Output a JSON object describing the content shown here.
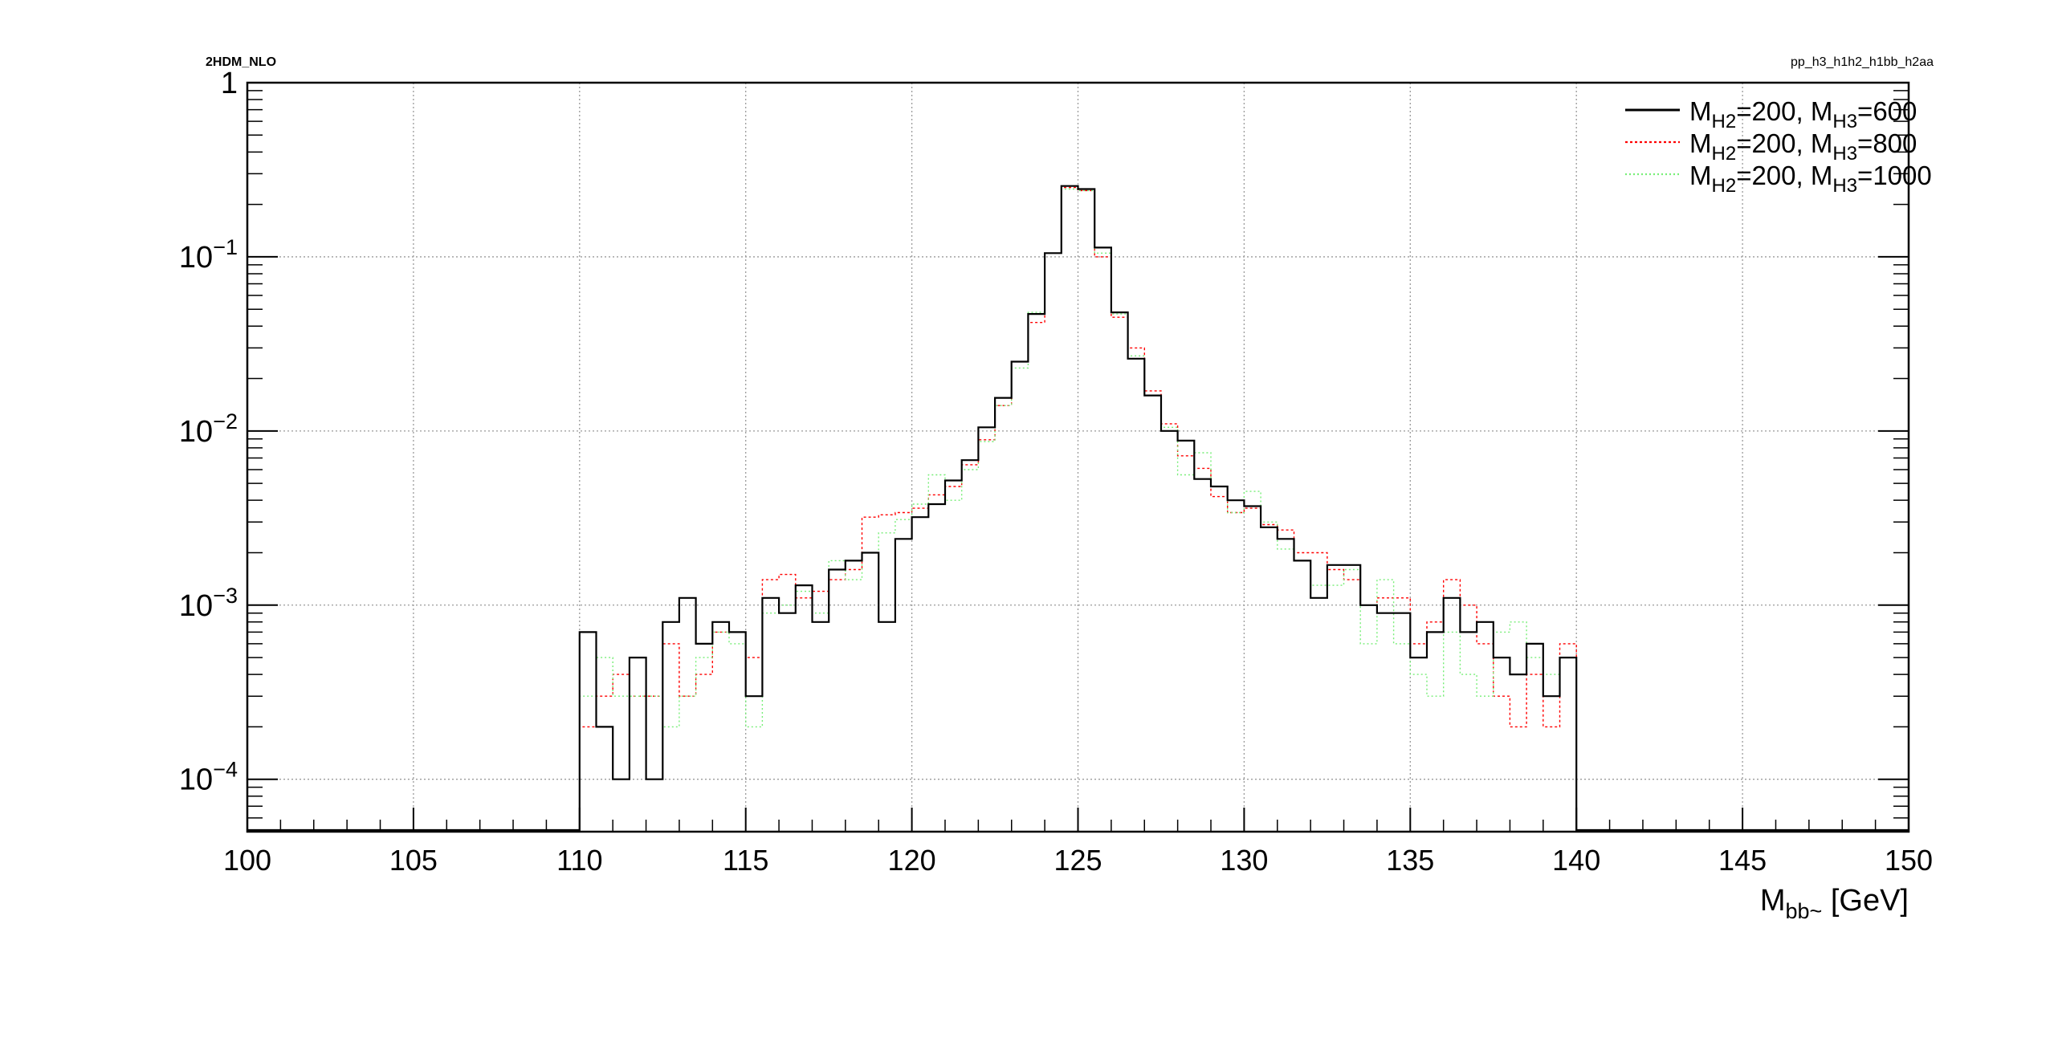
{
  "header": {
    "left_label": "2HDM_NLO",
    "right_label": "pp_h3_h1h2_h1bb_h2aa"
  },
  "chart_data": {
    "type": "histogram",
    "title": "",
    "xlabel_main": "M",
    "xlabel_sub": "bb~",
    "xlabel_unit": " [GeV]",
    "ylabel": "",
    "xlim": [
      100,
      150
    ],
    "ylim": [
      5e-05,
      1
    ],
    "yscale": "log",
    "grid": true,
    "legend_position": "top-right",
    "x_ticks": [
      100,
      105,
      110,
      115,
      120,
      125,
      130,
      135,
      140,
      145,
      150
    ],
    "y_ticks": [
      {
        "value": 1,
        "label": "1",
        "exp": ""
      },
      {
        "value": 0.1,
        "label": "10",
        "exp": "−1"
      },
      {
        "value": 0.01,
        "label": "10",
        "exp": "−2"
      },
      {
        "value": 0.001,
        "label": "10",
        "exp": "−3"
      },
      {
        "value": 0.0001,
        "label": "10",
        "exp": "−4"
      }
    ],
    "bin_edges_start": 110,
    "bin_width": 0.5,
    "series": [
      {
        "legend": {
          "t1": "M",
          "s1": "H2",
          "t2": "=200, M",
          "s2": "H3",
          "t3": "=600"
        },
        "color": "#000000",
        "dash": "",
        "width": 2.2,
        "values": [
          0.0007,
          0.0002,
          0.0001,
          0.0005,
          0.0001,
          0.0008,
          0.0011,
          0.0006,
          0.0008,
          0.0007,
          0.0003,
          0.0011,
          0.0009,
          0.0013,
          0.0008,
          0.0016,
          0.0018,
          0.002,
          0.0008,
          0.0024,
          0.0032,
          0.0038,
          0.0052,
          0.0068,
          0.0105,
          0.0155,
          0.025,
          0.047,
          0.105,
          0.255,
          0.245,
          0.113,
          0.048,
          0.026,
          0.016,
          0.01,
          0.0088,
          0.0053,
          0.0048,
          0.004,
          0.0037,
          0.0028,
          0.0024,
          0.0018,
          0.0011,
          0.0017,
          0.0017,
          0.001,
          0.0009,
          0.0009,
          0.0005,
          0.0007,
          0.0011,
          0.0007,
          0.0008,
          0.0005,
          0.0004,
          0.0006,
          0.0003,
          0.0005
        ]
      },
      {
        "legend": {
          "t1": "M",
          "s1": "H2",
          "t2": "=200, M",
          "s2": "H3",
          "t3": "=800"
        },
        "color": "#ff0000",
        "dash": "3,3",
        "width": 1.4,
        "values": [
          0.0002,
          0.0003,
          0.0004,
          0.0003,
          0.0003,
          0.0006,
          0.0003,
          0.0004,
          0.0007,
          0.0007,
          0.0005,
          0.0014,
          0.0015,
          0.0011,
          0.0012,
          0.0014,
          0.0016,
          0.0032,
          0.0033,
          0.0034,
          0.0036,
          0.0043,
          0.0048,
          0.0064,
          0.0089,
          0.014,
          0.025,
          0.042,
          0.105,
          0.25,
          0.24,
          0.1,
          0.045,
          0.03,
          0.017,
          0.011,
          0.0072,
          0.0061,
          0.0042,
          0.0034,
          0.0036,
          0.0029,
          0.0027,
          0.002,
          0.002,
          0.0016,
          0.0014,
          0.001,
          0.0011,
          0.0011,
          0.0006,
          0.0008,
          0.0014,
          0.001,
          0.0006,
          0.0003,
          0.0002,
          0.0004,
          0.0002,
          0.0006
        ]
      },
      {
        "legend": {
          "t1": "M",
          "s1": "H2",
          "t2": "=200, M",
          "s2": "H3",
          "t3": "=1000"
        },
        "color": "#77ee77",
        "dash": "2,3",
        "width": 1.4,
        "values": [
          0.0003,
          0.0005,
          0.0003,
          0.0003,
          0.0003,
          0.0002,
          0.0003,
          0.0005,
          0.0007,
          0.0006,
          0.0002,
          0.0009,
          0.001,
          0.0012,
          0.0009,
          0.0018,
          0.0014,
          0.002,
          0.0026,
          0.0031,
          0.0038,
          0.0056,
          0.004,
          0.006,
          0.0087,
          0.014,
          0.023,
          0.048,
          0.105,
          0.245,
          0.24,
          0.105,
          0.047,
          0.027,
          0.016,
          0.0105,
          0.0056,
          0.0075,
          0.0048,
          0.0034,
          0.0045,
          0.003,
          0.0021,
          0.0018,
          0.0013,
          0.0013,
          0.0016,
          0.0006,
          0.0014,
          0.0006,
          0.0004,
          0.0003,
          0.0007,
          0.0004,
          0.0003,
          0.0007,
          0.0008,
          0.0005,
          0.0004,
          0.0005
        ]
      }
    ]
  }
}
